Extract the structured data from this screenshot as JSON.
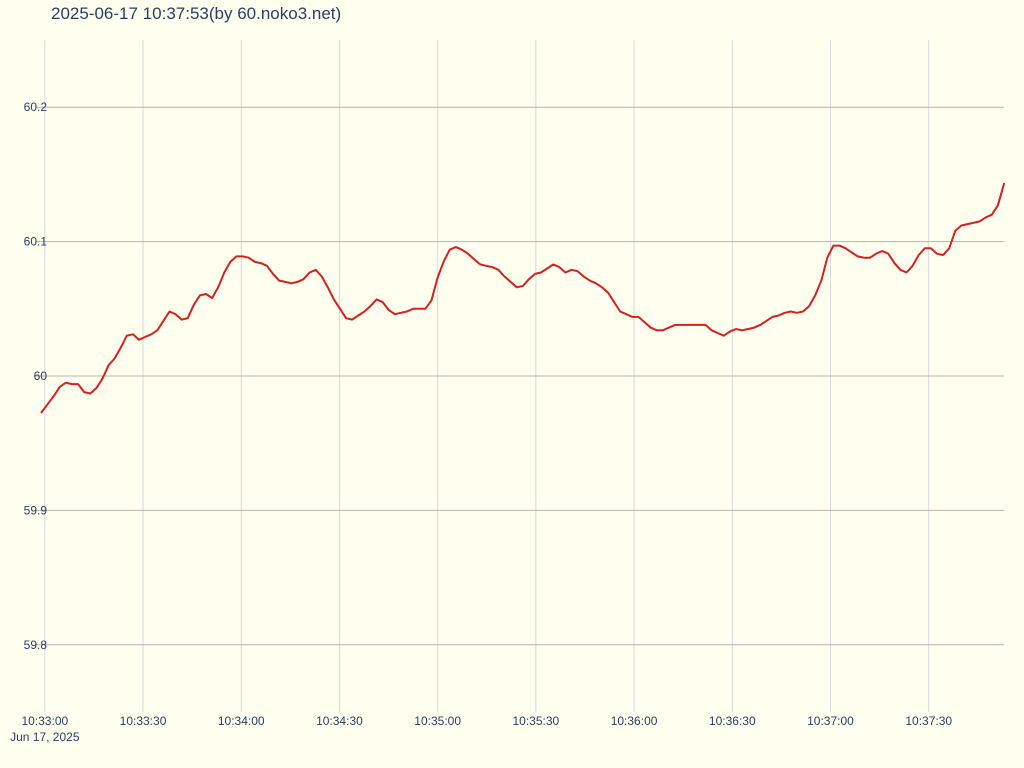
{
  "title": "2025-06-17 10:37:53(by 60.noko3.net)",
  "colors": {
    "background": "#fffff0",
    "line": "#d62020",
    "text": "#2a3f5f",
    "grid_h": "#b4b4b4",
    "grid_v": "#d8d8d8"
  },
  "chart_data": {
    "type": "line",
    "title": "2025-06-17 10:37:53(by 60.noko3.net)",
    "xlabel": "",
    "ylabel": "",
    "x_start": "10:32:59",
    "x_end": "10:37:53",
    "xlim": [
      "10:32:57",
      "10:37:53"
    ],
    "ylim": [
      59.75,
      60.25
    ],
    "x_ticks": [
      "10:33:00",
      "10:33:30",
      "10:34:00",
      "10:34:30",
      "10:35:00",
      "10:35:30",
      "10:36:00",
      "10:36:30",
      "10:37:00",
      "10:37:30"
    ],
    "x_date_label": "Jun 17, 2025",
    "y_ticks": [
      59.8,
      59.9,
      60,
      60.1,
      60.2
    ],
    "y_tick_labels": [
      "59.8",
      "59.9",
      "60",
      "60.1",
      "60.2"
    ],
    "grid": true,
    "legend": "none",
    "series": [
      {
        "color": "#d62020",
        "values": [
          59.973,
          59.979,
          59.985,
          59.992,
          59.995,
          59.994,
          59.994,
          59.988,
          59.987,
          59.991,
          59.998,
          60.008,
          60.013,
          60.021,
          60.03,
          60.031,
          60.027,
          60.029,
          60.031,
          60.034,
          60.041,
          60.048,
          60.046,
          60.042,
          60.043,
          60.053,
          60.06,
          60.061,
          60.058,
          60.066,
          60.077,
          60.085,
          60.089,
          60.089,
          60.088,
          60.085,
          60.084,
          60.082,
          60.076,
          60.071,
          60.07,
          60.069,
          60.07,
          60.072,
          60.077,
          60.079,
          60.074,
          60.066,
          60.057,
          60.05,
          60.043,
          60.042,
          60.045,
          60.048,
          60.052,
          60.057,
          60.055,
          60.049,
          60.046,
          60.047,
          60.048,
          60.05,
          60.05,
          60.05,
          60.056,
          60.073,
          60.085,
          60.094,
          60.096,
          60.094,
          60.091,
          60.087,
          60.083,
          60.082,
          60.081,
          60.079,
          60.074,
          60.07,
          60.066,
          60.067,
          60.072,
          60.076,
          60.077,
          60.08,
          60.083,
          60.081,
          60.077,
          60.079,
          60.078,
          60.074,
          60.071,
          60.069,
          60.066,
          60.062,
          60.055,
          60.048,
          60.046,
          60.044,
          60.044,
          60.04,
          60.036,
          60.034,
          60.034,
          60.036,
          60.038,
          60.038,
          60.038,
          60.038,
          60.038,
          60.038,
          60.034,
          60.032,
          60.03,
          60.033,
          60.035,
          60.034,
          60.035,
          60.036,
          60.038,
          60.041,
          60.044,
          60.045,
          60.047,
          60.048,
          60.047,
          60.048,
          60.052,
          60.06,
          60.071,
          60.088,
          60.097,
          60.097,
          60.095,
          60.092,
          60.089,
          60.088,
          60.088,
          60.091,
          60.093,
          60.091,
          60.084,
          60.079,
          60.077,
          60.082,
          60.09,
          60.095,
          60.095,
          60.091,
          60.09,
          60.095,
          60.108,
          60.112,
          60.113,
          60.114,
          60.115,
          60.118,
          60.12,
          60.127,
          60.143
        ]
      }
    ]
  }
}
